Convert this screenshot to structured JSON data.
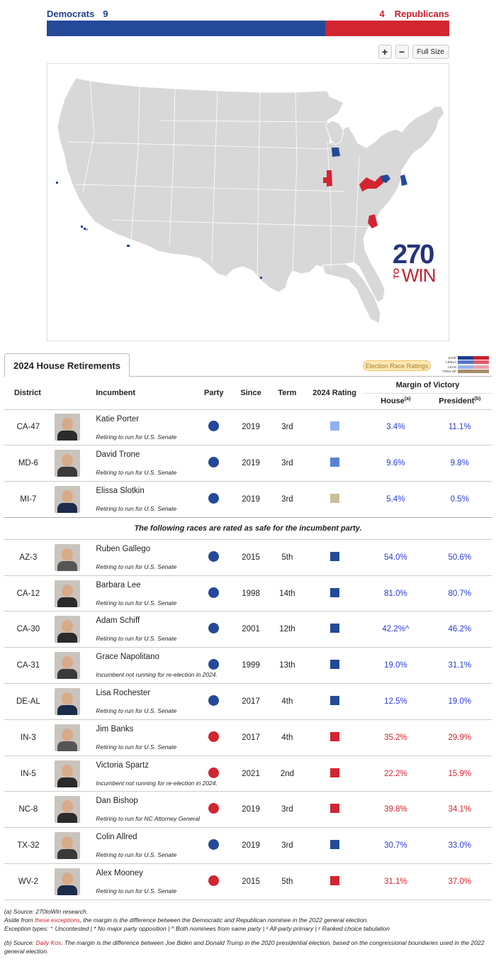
{
  "totals": {
    "dem_label": "Democrats",
    "dem_count": "9",
    "rep_label": "Republicans",
    "rep_count": "4",
    "dem_color": "#244999",
    "rep_color": "#d22532"
  },
  "map_controls": {
    "zoom_in": "+",
    "zoom_out": "−",
    "full_size": "Full Size"
  },
  "logo": {
    "number": "270",
    "to": "TO",
    "win": "WIN"
  },
  "tab": {
    "label": "2024 House Retirements"
  },
  "rating_legend": {
    "button_label": "Election Race Ratings",
    "rows": [
      {
        "label": "SAFE",
        "dem": "#1f3f8f",
        "rep": "#c8202e"
      },
      {
        "label": "LIKELY",
        "dem": "#5577cc",
        "rep": "#e65a6a"
      },
      {
        "label": "LEAN",
        "dem": "#9ab4f0",
        "rep": "#f3a0a9"
      },
      {
        "label": "TOSS-UP",
        "dem": "#a88a6a",
        "rep": "#a88a6a"
      }
    ]
  },
  "table": {
    "headers": {
      "district": "District",
      "incumbent": "Incumbent",
      "party": "Party",
      "since": "Since",
      "term": "Term",
      "rating": "2024 Rating",
      "margin": "Margin of Victory",
      "house": "House",
      "house_sup": "(a)",
      "president": "President",
      "president_sup": "(b)"
    },
    "separator": "The following races are rated as safe for the incumbent party.",
    "rows_top": [
      {
        "district": "CA-47",
        "name": "Katie Porter",
        "note": "Retiring to run for U.S. Senate",
        "party": "D",
        "since": "2019",
        "term": "3rd",
        "rating_color": "#8fb0f5",
        "house": "3.4%",
        "president": "11.1%"
      },
      {
        "district": "MD-6",
        "name": "David Trone",
        "note": "Retiring to run for U.S. Senate",
        "party": "D",
        "since": "2019",
        "term": "3rd",
        "rating_color": "#5b82d8",
        "house": "9.6%",
        "president": "9.8%"
      },
      {
        "district": "MI-7",
        "name": "Elissa Slotkin",
        "note": "Retiring to run for U.S. Senate",
        "party": "D",
        "since": "2019",
        "term": "3rd",
        "rating_color": "#cbbe9a",
        "house": "5.4%",
        "president": "0.5%"
      }
    ],
    "rows_safe": [
      {
        "district": "AZ-3",
        "name": "Ruben Gallego",
        "note": "Retiring to run for U.S. Senate",
        "party": "D",
        "since": "2015",
        "term": "5th",
        "house": "54.0%",
        "president": "50.6%"
      },
      {
        "district": "CA-12",
        "name": "Barbara Lee",
        "note": "Retiring to run for U.S. Senate",
        "party": "D",
        "since": "1998",
        "term": "14th",
        "house": "81.0%",
        "president": "80.7%"
      },
      {
        "district": "CA-30",
        "name": "Adam Schiff",
        "note": "Retiring to run for U.S. Senate",
        "party": "D",
        "since": "2001",
        "term": "12th",
        "house": "42.2%^",
        "president": "46.2%"
      },
      {
        "district": "CA-31",
        "name": "Grace Napolitano",
        "note": "Incumbent not running for re-election in 2024.",
        "party": "D",
        "since": "1999",
        "term": "13th",
        "house": "19.0%",
        "president": "31.1%"
      },
      {
        "district": "DE-AL",
        "name": "Lisa Rochester",
        "note": "Retiring to run for U.S. Senate",
        "party": "D",
        "since": "2017",
        "term": "4th",
        "house": "12.5%",
        "president": "19.0%"
      },
      {
        "district": "IN-3",
        "name": "Jim Banks",
        "note": "Retiring to run for U.S. Senate",
        "party": "R",
        "since": "2017",
        "term": "4th",
        "house": "35.2%",
        "president": "29.9%"
      },
      {
        "district": "IN-5",
        "name": "Victoria Spartz",
        "note": "Incumbent not running for re-election in 2024.",
        "party": "R",
        "since": "2021",
        "term": "2nd",
        "house": "22.2%",
        "president": "15.9%"
      },
      {
        "district": "NC-8",
        "name": "Dan Bishop",
        "note": "Retiring to run for NC Attorney General",
        "party": "R",
        "since": "2019",
        "term": "3rd",
        "house": "39.8%",
        "president": "34.1%"
      },
      {
        "district": "TX-32",
        "name": "Colin Allred",
        "note": "Retiring to run for U.S. Senate",
        "party": "D",
        "since": "2019",
        "term": "3rd",
        "house": "30.7%",
        "president": "33.0%"
      },
      {
        "district": "WV-2",
        "name": "Alex Mooney",
        "note": "Retiring to run for U.S. Senate",
        "party": "R",
        "since": "2015",
        "term": "5th",
        "house": "31.1%",
        "president": "37.0%"
      }
    ]
  },
  "footnotes": {
    "a_source": "(a) Source: 270toWin research.",
    "a_line2_pre": "Aside from ",
    "a_line2_link": "these exceptions",
    "a_line2_post": ", the margin is the difference between the Democratic and Republican nominee in the 2022 general election.",
    "a_line3": "Exception types: ⁺ Uncontested | * No major party opposition | ^ Both nominees from same party | ˣ All-party primary | ʸ Ranked choice tabulation",
    "b_pre": "(b) Source: ",
    "b_link": "Daily Kos",
    "b_post": ". The margin is the difference between Joe Biden and Donald Trump in the 2020 presidential election, based on the congressional boundaries used in the 2022 general election."
  }
}
